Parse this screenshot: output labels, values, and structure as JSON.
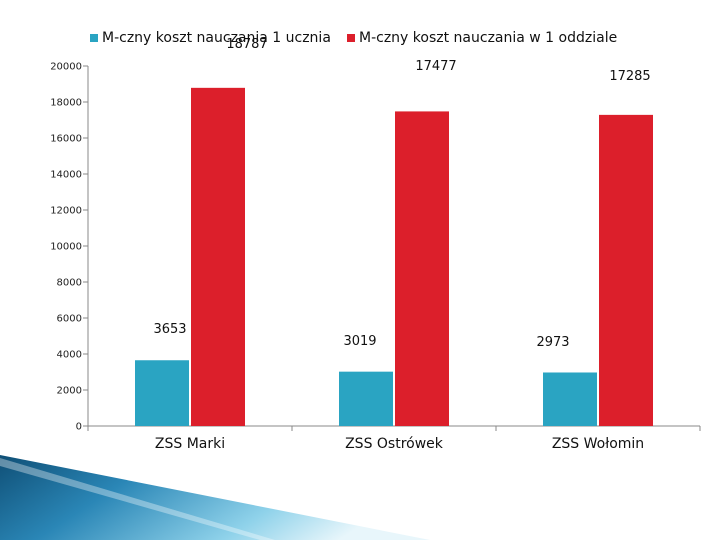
{
  "chart_data": {
    "type": "bar",
    "categories": [
      "ZSS Marki",
      "ZSS Ostrówek",
      "ZSS  Wołomin"
    ],
    "series": [
      {
        "name": "M-czny koszt nauczania 1 ucznia",
        "values": [
          3653,
          3019,
          2973
        ],
        "labels": [
          "3653",
          "3019",
          "2973"
        ],
        "color": "#2aa4c2"
      },
      {
        "name": "M-czny koszt nauczania w 1 oddziale",
        "values": [
          18787,
          17477,
          17285
        ],
        "labels": [
          "18787",
          "17477",
          "17285"
        ],
        "color": "#dc1f2b"
      }
    ],
    "ylim": [
      0,
      20000
    ],
    "yticks": [
      "0",
      "2000",
      "4000",
      "6000",
      "8000",
      "10000",
      "12000",
      "14000",
      "16000",
      "18000",
      "20000"
    ],
    "legend_position": "top",
    "grid": false
  }
}
